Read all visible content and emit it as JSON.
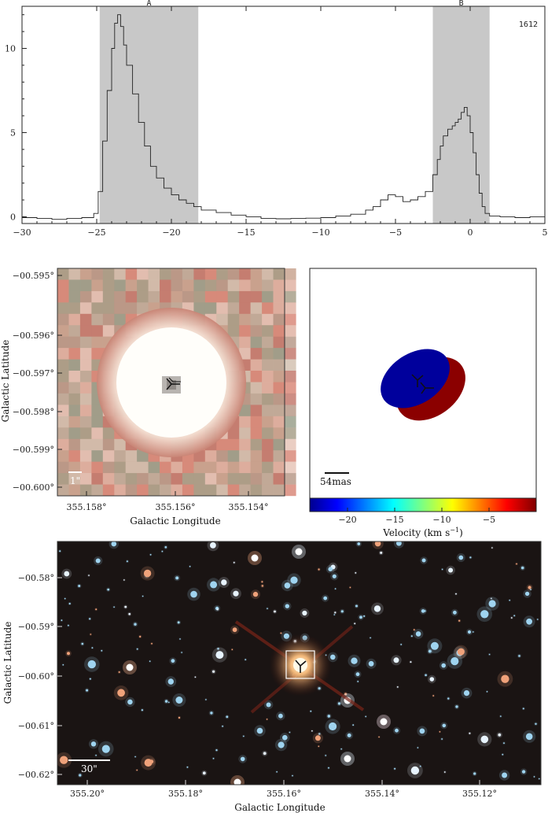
{
  "spectrum": {
    "label": "1612",
    "x_ticks": [
      "−30",
      "−25",
      "−20",
      "−15",
      "−10",
      "−5",
      "0",
      "5"
    ],
    "y_ticks": [
      "0",
      "5",
      "10"
    ],
    "regions": [
      {
        "name": "A",
        "x0": -24.8,
        "x1": -18.2
      },
      {
        "name": "B",
        "x0": -2.5,
        "x1": 1.3
      }
    ]
  },
  "chart_data": [
    {
      "type": "line",
      "title": "",
      "xlabel": "",
      "ylabel": "",
      "xlim": [
        -30,
        5
      ],
      "ylim": [
        -0.4,
        12.5
      ],
      "annotation": "1612",
      "shaded_regions": [
        {
          "label": "A",
          "x": [
            -24.8,
            -18.2
          ]
        },
        {
          "label": "B",
          "x": [
            -2.5,
            1.3
          ]
        }
      ],
      "series": [
        {
          "x": [
            -30,
            -29,
            -28,
            -27,
            -26,
            -25.2,
            -24.9,
            -24.6,
            -24.3,
            -24.0,
            -23.8,
            -23.6,
            -23.4,
            -23.2,
            -23.0,
            -22.6,
            -22.2,
            -21.8,
            -21.4,
            -21.0,
            -20.5,
            -20.0,
            -19.5,
            -19.0,
            -18.5,
            -18.0,
            -17.0,
            -16.0,
            -15.0,
            -14.0,
            -13.0,
            -12.0,
            -11.0,
            -10.0,
            -9.0,
            -8.0,
            -7.0,
            -6.5,
            -6.0,
            -5.5,
            -5.0,
            -4.5,
            -4.0,
            -3.5,
            -3.0,
            -2.5,
            -2.2,
            -2.0,
            -1.8,
            -1.5,
            -1.2,
            -1.0,
            -0.8,
            -0.6,
            -0.4,
            -0.2,
            0.0,
            0.2,
            0.4,
            0.6,
            0.8,
            1.0,
            1.3,
            2.0,
            3.0,
            4.0,
            5.0
          ],
          "y": [
            -0.05,
            -0.1,
            -0.15,
            -0.1,
            -0.05,
            0.2,
            1.5,
            4.5,
            7.5,
            10,
            11.5,
            12.0,
            11.3,
            10.2,
            9.0,
            7.3,
            5.6,
            4.2,
            3.0,
            2.3,
            1.7,
            1.3,
            1.0,
            0.8,
            0.6,
            0.4,
            0.25,
            0.1,
            0.0,
            -0.1,
            -0.12,
            -0.1,
            -0.08,
            -0.05,
            0.05,
            0.15,
            0.4,
            0.6,
            1.0,
            1.3,
            1.2,
            0.9,
            1.0,
            1.2,
            1.5,
            2.5,
            3.4,
            4.2,
            4.8,
            5.2,
            5.4,
            5.6,
            5.8,
            6.2,
            6.5,
            6.0,
            5.0,
            3.8,
            2.5,
            1.4,
            0.6,
            0.2,
            0.05,
            0.0,
            -0.05,
            0.0,
            -0.05
          ]
        }
      ]
    },
    {
      "type": "heatmap",
      "title": "",
      "xlabel": "Galactic Longitude",
      "ylabel": "Galactic Latitude",
      "x_tick_labels": [
        "355.158°",
        "355.156°",
        "355.154°"
      ],
      "y_tick_labels": [
        "−00.595°",
        "−00.596°",
        "−00.597°",
        "−00.598°",
        "−00.599°",
        "−00.600°"
      ],
      "scale_label": "1\""
    },
    {
      "type": "scatter",
      "title": "",
      "xlabel": "Velocity (km s",
      "colorbar_ticks": [
        "−20",
        "−15",
        "−10",
        "−5"
      ],
      "colorbar_range": [
        -24,
        0
      ],
      "scale_label": "54mas",
      "components": [
        {
          "color": "#00009c",
          "velocity": -23.6
        },
        {
          "color": "#8b0000",
          "velocity": -0.6
        }
      ]
    },
    {
      "type": "heatmap",
      "title": "",
      "xlabel": "Galactic Longitude",
      "ylabel": "Galactic Latitude",
      "x_tick_labels": [
        "355.20°",
        "355.18°",
        "355.16°",
        "355.14°",
        "355.12°"
      ],
      "y_tick_labels": [
        "−00.58°",
        "−00.59°",
        "−00.60°",
        "−00.61°",
        "−00.62°"
      ],
      "scale_label": "30\""
    }
  ],
  "panels": {
    "zoom": {
      "xlabel": "Galactic Longitude",
      "ylabel": "Galactic Latitude",
      "x_ticks": [
        "355.158°",
        "355.156°",
        "355.154°"
      ],
      "y_ticks": [
        "−00.595°",
        "−00.596°",
        "−00.597°",
        "−00.598°",
        "−00.599°",
        "−00.600°"
      ],
      "scale": "1\""
    },
    "maser": {
      "scale": "54mas",
      "cb_ticks": [
        "−20",
        "−15",
        "−10",
        "−5"
      ],
      "cb_label": "Velocity (km s",
      "cb_label_exp": "−1",
      "cb_label_end": ")"
    },
    "field": {
      "xlabel": "Galactic Longitude",
      "ylabel": "Galactic Latitude",
      "x_ticks": [
        "355.20°",
        "355.18°",
        "355.16°",
        "355.14°",
        "355.12°"
      ],
      "y_ticks": [
        "−00.58°",
        "−00.59°",
        "−00.60°",
        "−00.61°",
        "−00.62°"
      ],
      "scale": "30\""
    }
  }
}
